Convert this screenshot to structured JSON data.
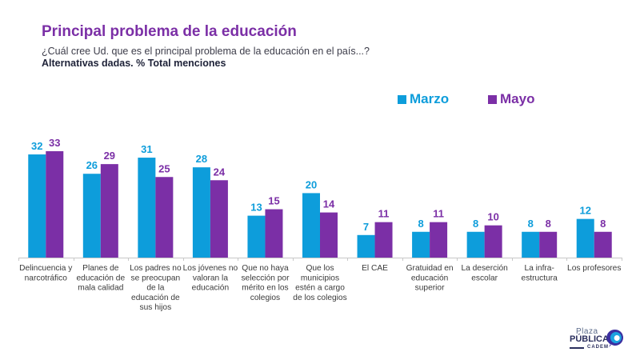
{
  "header": {
    "title": "Principal problema de la educación",
    "question": "¿Cuál cree Ud. que es el principal problema de la educación en el país...?",
    "note": "Alternativas dadas. % Total menciones"
  },
  "colors": {
    "title": "#7b2fa6",
    "marzo": "#0d9ddb",
    "mayo": "#7b2fa6"
  },
  "logo": {
    "line1": "Plaza",
    "line2": "PÚBLICA",
    "line3": "CADEM"
  },
  "chart_data": {
    "type": "bar",
    "title": "Principal problema de la educación",
    "xlabel": "",
    "ylabel": "% Total menciones",
    "ylim": [
      0,
      36
    ],
    "grid": false,
    "legend_position": "top-right",
    "categories": [
      [
        "Delincuencia y",
        "narcotráfico"
      ],
      [
        "Planes de",
        "educación de",
        "mala calidad"
      ],
      [
        "Los padres no",
        "se preocupan",
        "de la",
        "educación de",
        "sus hijos"
      ],
      [
        "Los jóvenes no",
        "valoran la",
        "educación"
      ],
      [
        "Que no haya",
        "selección por",
        "mérito en los",
        "colegios"
      ],
      [
        "Que los",
        "municipios",
        "estén a cargo",
        "de los colegios"
      ],
      [
        "El CAE"
      ],
      [
        "Gratuidad en",
        "educación",
        "superior"
      ],
      [
        "La deserción",
        "escolar"
      ],
      [
        "La infra-",
        "estructura"
      ],
      [
        "Los profesores"
      ]
    ],
    "series": [
      {
        "name": "Marzo",
        "color": "#0d9ddb",
        "values": [
          32,
          26,
          31,
          28,
          13,
          20,
          7,
          8,
          8,
          8,
          12
        ]
      },
      {
        "name": "Mayo",
        "color": "#7b2fa6",
        "values": [
          33,
          29,
          25,
          24,
          15,
          14,
          11,
          11,
          10,
          8,
          8
        ]
      }
    ]
  }
}
